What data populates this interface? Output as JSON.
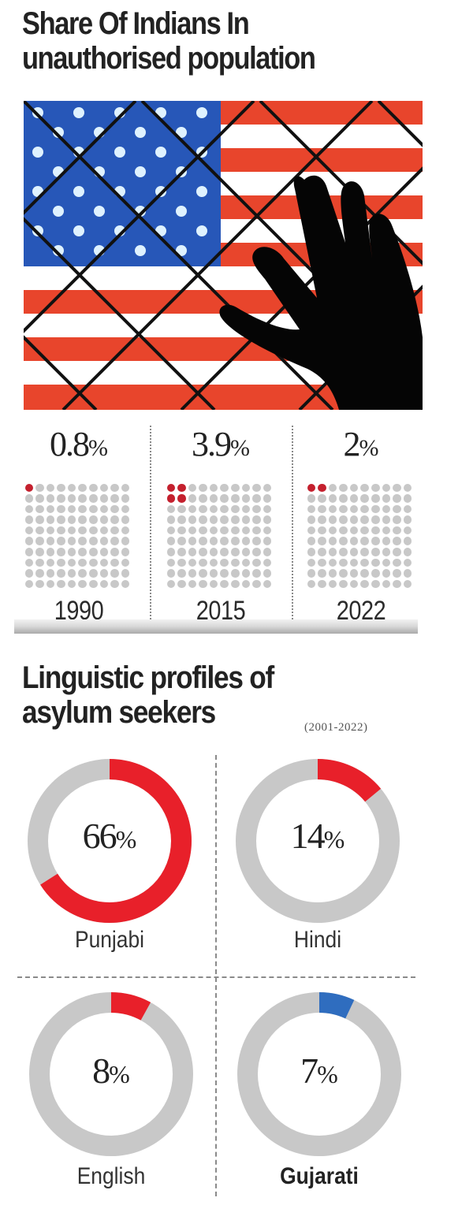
{
  "section1": {
    "title": "Share Of Indians In unauthorised population",
    "title_line1": "Share Of Indians In",
    "title_line2": "unauthorised population",
    "image": {
      "icon": "us-flag-chainlink-fence-hand-icon",
      "description": "US flag behind chain-link fence with silhouetted hand"
    },
    "waffles": [
      {
        "year": "1990",
        "value": "0.8",
        "symbol": "%",
        "filled_dots": 1
      },
      {
        "year": "2015",
        "value": "3.9",
        "symbol": "%",
        "filled_dots": 4
      },
      {
        "year": "2022",
        "value": "2",
        "symbol": "%",
        "filled_dots": 2
      }
    ]
  },
  "section2": {
    "title_line1": "Linguistic profiles of",
    "title_line2": "asylum seekers",
    "period": "(2001-2022)",
    "donuts": [
      {
        "label": "Punjabi",
        "value": "66",
        "symbol": "%",
        "color": "#e8202a"
      },
      {
        "label": "Hindi",
        "value": "14",
        "symbol": "%",
        "color": "#e8202a"
      },
      {
        "label": "English",
        "value": "8",
        "symbol": "%",
        "color": "#e8202a"
      },
      {
        "label": "Gujarati",
        "value": "7",
        "symbol": "%",
        "color": "#2f6dbf"
      }
    ]
  },
  "colors": {
    "accent_red": "#e8202a",
    "waffle_red": "#c4202e",
    "accent_blue": "#2f6dbf",
    "ring_grey": "#c8c8c8",
    "dot_grey": "#c8c8c8"
  },
  "chart_data": [
    {
      "type": "waffle",
      "title": "Share Of Indians In unauthorised population",
      "categories": [
        "1990",
        "2015",
        "2022"
      ],
      "values": [
        0.8,
        3.9,
        2
      ],
      "unit": "%",
      "grid": "10x10",
      "filled_dots": [
        1,
        4,
        2
      ],
      "series_color": "#c4202e"
    },
    {
      "type": "pie",
      "subtype": "donut",
      "title": "Linguistic profiles of asylum seekers",
      "subtitle": "(2001-2022)",
      "categories": [
        "Punjabi",
        "Hindi",
        "English",
        "Gujarati"
      ],
      "values": [
        66,
        14,
        8,
        7
      ],
      "unit": "%",
      "colors": [
        "#e8202a",
        "#e8202a",
        "#e8202a",
        "#2f6dbf"
      ]
    }
  ]
}
